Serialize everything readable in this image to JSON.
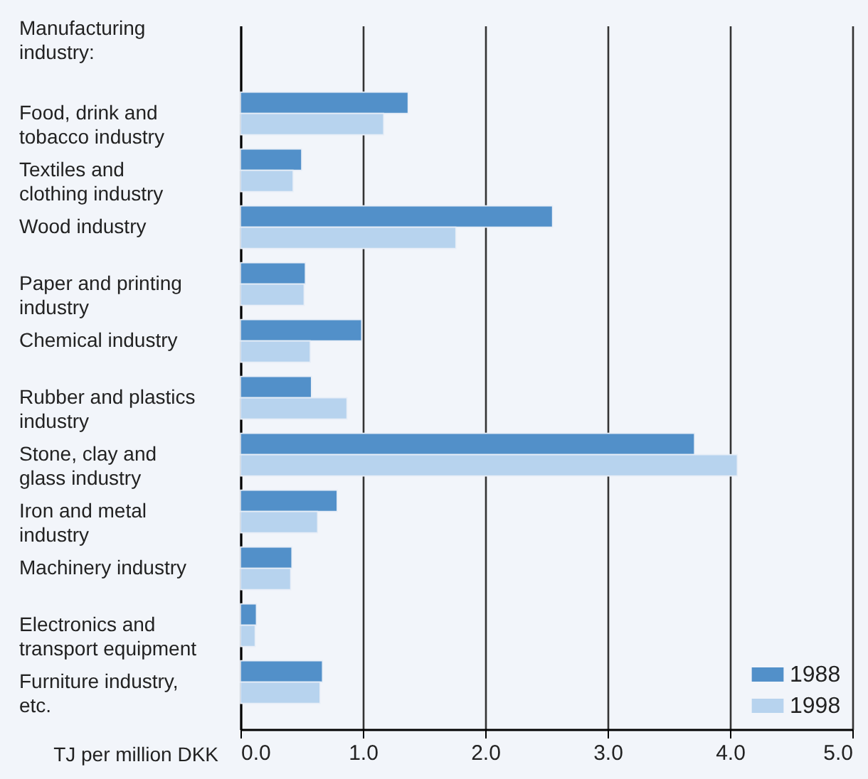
{
  "chart_data": {
    "type": "bar",
    "orientation": "horizontal",
    "xlabel": "TJ per million DKK",
    "ylabel": "Manufacturing industry:",
    "categories": [
      "Food, drink and tobacco industry",
      "Textiles and clothing industry",
      "Wood industry",
      "Paper and printing industry",
      "Chemical industry",
      "Rubber and plastics industry",
      "Stone, clay and glass industry",
      "Iron and metal industry",
      "Machinery industry",
      "Electronics and transport equipment",
      "Furniture industry, etc."
    ],
    "series": [
      {
        "name": "1988",
        "color": "#5290c9",
        "values": [
          1.37,
          0.5,
          2.55,
          0.53,
          0.99,
          0.58,
          3.71,
          0.79,
          0.42,
          0.13,
          0.67
        ]
      },
      {
        "name": "1998",
        "color": "#b7d3ee",
        "values": [
          1.17,
          0.43,
          1.76,
          0.52,
          0.57,
          0.87,
          4.06,
          0.63,
          0.41,
          0.12,
          0.65
        ]
      }
    ],
    "xlim": [
      0,
      5
    ],
    "xticks": [
      {
        "value": 0,
        "label": "0.0"
      },
      {
        "value": 1,
        "label": "1.0"
      },
      {
        "value": 2,
        "label": "2.0"
      },
      {
        "value": 3,
        "label": "3.0"
      },
      {
        "value": 4,
        "label": "4.0"
      },
      {
        "value": 5,
        "label": "5.0"
      }
    ],
    "grid": "x",
    "legend": "bottom right"
  }
}
